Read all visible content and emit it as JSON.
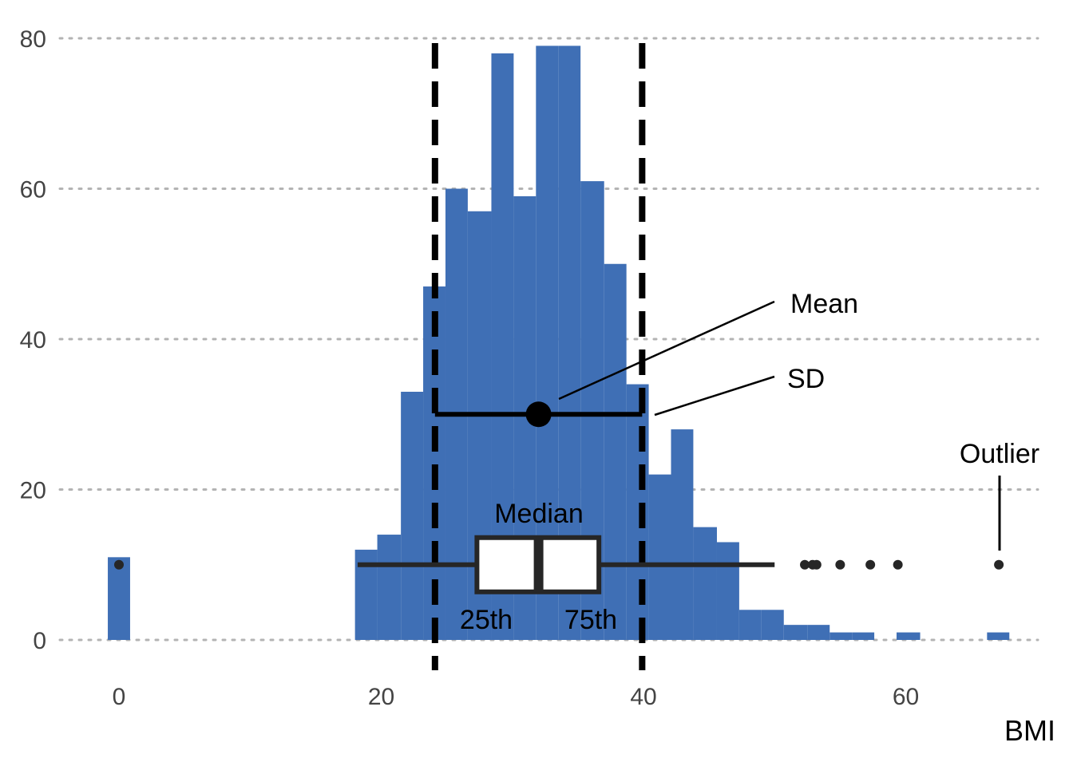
{
  "chart_data": {
    "type": "bar",
    "xlabel": "BMI",
    "ylabel": "",
    "xlim": [
      -1,
      69
    ],
    "ylim": [
      0,
      80
    ],
    "x_ticks": [
      0,
      20,
      40,
      60
    ],
    "y_ticks": [
      0,
      20,
      40,
      60,
      80
    ],
    "grid": "horizontal-dotted",
    "bar_color": "#3F6FB5",
    "bins": [
      {
        "x0": -0.85,
        "x1": 0.85,
        "count": 11
      },
      {
        "x0": 18.0,
        "x1": 19.7,
        "count": 12
      },
      {
        "x0": 19.7,
        "x1": 21.5,
        "count": 14
      },
      {
        "x0": 21.5,
        "x1": 23.2,
        "count": 33
      },
      {
        "x0": 23.2,
        "x1": 24.9,
        "count": 47
      },
      {
        "x0": 24.9,
        "x1": 26.6,
        "count": 60
      },
      {
        "x0": 26.6,
        "x1": 28.4,
        "count": 57
      },
      {
        "x0": 28.4,
        "x1": 30.1,
        "count": 78
      },
      {
        "x0": 30.1,
        "x1": 31.8,
        "count": 59
      },
      {
        "x0": 31.8,
        "x1": 33.5,
        "count": 79
      },
      {
        "x0": 33.5,
        "x1": 35.2,
        "count": 79
      },
      {
        "x0": 35.2,
        "x1": 37.0,
        "count": 61
      },
      {
        "x0": 37.0,
        "x1": 38.7,
        "count": 50
      },
      {
        "x0": 38.7,
        "x1": 40.4,
        "count": 34
      },
      {
        "x0": 40.4,
        "x1": 42.1,
        "count": 22
      },
      {
        "x0": 42.1,
        "x1": 43.8,
        "count": 28
      },
      {
        "x0": 43.8,
        "x1": 45.6,
        "count": 15
      },
      {
        "x0": 45.6,
        "x1": 47.3,
        "count": 13
      },
      {
        "x0": 47.3,
        "x1": 49.0,
        "count": 4
      },
      {
        "x0": 49.0,
        "x1": 50.7,
        "count": 4
      },
      {
        "x0": 50.7,
        "x1": 52.5,
        "count": 2
      },
      {
        "x0": 52.5,
        "x1": 54.2,
        "count": 2
      },
      {
        "x0": 54.2,
        "x1": 55.9,
        "count": 1
      },
      {
        "x0": 55.9,
        "x1": 57.6,
        "count": 1
      },
      {
        "x0": 59.3,
        "x1": 61.1,
        "count": 1
      },
      {
        "x0": 66.2,
        "x1": 67.9,
        "count": 1
      }
    ],
    "mean": 32.0,
    "sd": 7.9,
    "boxplot": {
      "y": 10,
      "min": 18.2,
      "q1": 27.3,
      "median": 32.0,
      "q3": 36.6,
      "max": 50.0,
      "outliers": [
        0,
        52.3,
        52.9,
        53.2,
        55.0,
        57.3,
        59.4,
        67.1
      ]
    },
    "mean_y": 30,
    "annotations": {
      "mean": "Mean",
      "sd": "SD",
      "outlier": "Outlier",
      "median": "Median",
      "q1": "25th",
      "q3": "75th"
    }
  }
}
